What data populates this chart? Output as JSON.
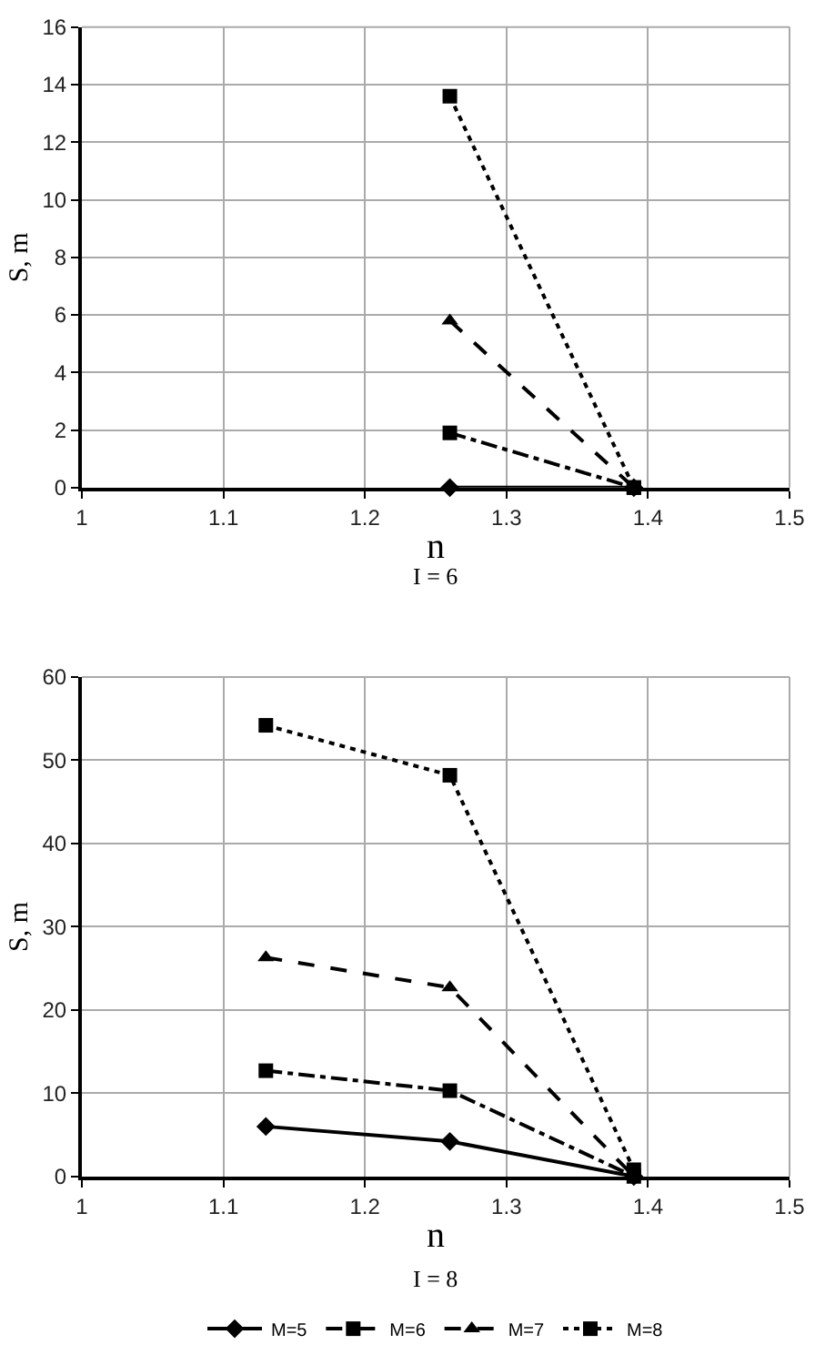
{
  "chart_data": [
    {
      "type": "line",
      "title": "I = 6",
      "xlabel": "n",
      "ylabel": "S, m",
      "x": [
        1.26,
        1.39
      ],
      "series": [
        {
          "color": "#000000",
          "values": [
            0,
            0
          ],
          "marker": "diamond",
          "line_style": "solid"
        },
        {
          "color": "#000000",
          "values": [
            1.9,
            0
          ],
          "marker": "square",
          "line_style": "dashdot"
        },
        {
          "color": "#000000",
          "values": [
            5.8,
            0
          ],
          "marker": "triangle",
          "line_style": "dashed"
        },
        {
          "color": "#000000",
          "values": [
            13.6,
            0
          ],
          "marker": "square",
          "line_style": "dotted"
        }
      ],
      "xlim": [
        1,
        1.5
      ],
      "xticks": [
        1,
        1.1,
        1.2,
        1.3,
        1.4,
        1.5
      ],
      "ylim": [
        0,
        16
      ],
      "yticks": [
        0,
        2,
        4,
        6,
        8,
        10,
        12,
        14,
        16
      ],
      "grid": true,
      "legend": false
    },
    {
      "type": "line",
      "title": "I = 8",
      "xlabel": "n",
      "ylabel": "S, m",
      "x": [
        1.13,
        1.26,
        1.39
      ],
      "series": [
        {
          "name": "M=5",
          "color": "#000000",
          "values": [
            6,
            4.2,
            0
          ],
          "marker": "diamond",
          "line_style": "solid"
        },
        {
          "name": "M=6",
          "color": "#000000",
          "values": [
            12.7,
            10.3,
            0
          ],
          "marker": "square",
          "line_style": "dashdot"
        },
        {
          "name": "M=7",
          "color": "#000000",
          "values": [
            26.3,
            22.7,
            0
          ],
          "marker": "triangle",
          "line_style": "dashed"
        },
        {
          "name": "M=8",
          "color": "#000000",
          "values": [
            54.2,
            48.2,
            0.8
          ],
          "marker": "square",
          "line_style": "dotted"
        }
      ],
      "xlim": [
        1,
        1.5
      ],
      "xticks": [
        1,
        1.1,
        1.2,
        1.3,
        1.4,
        1.5
      ],
      "ylim": [
        0,
        60
      ],
      "yticks": [
        0,
        10,
        20,
        30,
        40,
        50,
        60
      ],
      "grid": true,
      "legend": "bottom"
    }
  ]
}
